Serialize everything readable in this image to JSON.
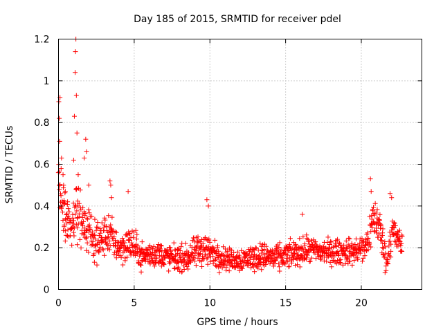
{
  "chart_data": {
    "type": "scatter",
    "title": "Day 185 of 2015, SRMTID for receiver pdel",
    "xlabel": "GPS time / hours",
    "ylabel": "SRMTID / TECUs",
    "xlim": [
      0,
      24
    ],
    "ylim": [
      0,
      1.2
    ],
    "grid": true,
    "marker": "plus",
    "series_color": "#ff0000",
    "xticks": [
      0,
      5,
      10,
      15,
      20
    ],
    "xtick_labels": [
      "0",
      "5",
      "10",
      "15",
      "20"
    ],
    "yticks": [
      0,
      0.2,
      0.4,
      0.6,
      0.8,
      1.0,
      1.2
    ],
    "ytick_labels": [
      "0",
      "0.2",
      "0.4",
      "0.6",
      "0.8",
      "1",
      "1.2"
    ],
    "trend": [
      [
        0.0,
        0.55,
        0.14
      ],
      [
        0.15,
        0.45,
        0.12
      ],
      [
        0.4,
        0.35,
        0.1
      ],
      [
        0.8,
        0.3,
        0.09
      ],
      [
        1.2,
        0.38,
        0.12
      ],
      [
        1.8,
        0.3,
        0.09
      ],
      [
        2.5,
        0.22,
        0.07
      ],
      [
        3.3,
        0.27,
        0.08
      ],
      [
        4.0,
        0.2,
        0.06
      ],
      [
        4.8,
        0.22,
        0.07
      ],
      [
        5.5,
        0.16,
        0.05
      ],
      [
        6.5,
        0.17,
        0.05
      ],
      [
        7.5,
        0.15,
        0.05
      ],
      [
        8.5,
        0.15,
        0.05
      ],
      [
        9.5,
        0.2,
        0.07
      ],
      [
        10.5,
        0.16,
        0.05
      ],
      [
        11.5,
        0.14,
        0.04
      ],
      [
        12.5,
        0.15,
        0.05
      ],
      [
        13.5,
        0.16,
        0.05
      ],
      [
        14.5,
        0.15,
        0.05
      ],
      [
        15.5,
        0.17,
        0.05
      ],
      [
        16.5,
        0.19,
        0.05
      ],
      [
        17.5,
        0.18,
        0.05
      ],
      [
        18.5,
        0.18,
        0.05
      ],
      [
        19.5,
        0.18,
        0.05
      ],
      [
        20.3,
        0.2,
        0.06
      ],
      [
        20.8,
        0.35,
        0.08
      ],
      [
        21.2,
        0.3,
        0.08
      ],
      [
        21.7,
        0.12,
        0.05
      ],
      [
        22.0,
        0.3,
        0.08
      ],
      [
        22.3,
        0.25,
        0.06
      ],
      [
        22.6,
        0.22,
        0.05
      ]
    ],
    "highlights": [
      [
        0.02,
        0.9
      ],
      [
        0.05,
        0.82
      ],
      [
        0.08,
        0.71
      ],
      [
        0.1,
        0.92
      ],
      [
        0.2,
        0.63
      ],
      [
        0.3,
        0.55
      ],
      [
        0.45,
        0.47
      ],
      [
        0.6,
        0.42
      ],
      [
        1.0,
        0.62
      ],
      [
        1.05,
        0.83
      ],
      [
        1.1,
        1.04
      ],
      [
        1.12,
        1.14
      ],
      [
        1.15,
        1.2
      ],
      [
        1.18,
        0.93
      ],
      [
        1.22,
        0.75
      ],
      [
        1.3,
        0.55
      ],
      [
        1.7,
        0.63
      ],
      [
        1.8,
        0.72
      ],
      [
        1.85,
        0.66
      ],
      [
        2.0,
        0.5
      ],
      [
        3.4,
        0.52
      ],
      [
        3.45,
        0.5
      ],
      [
        3.5,
        0.44
      ],
      [
        4.6,
        0.47
      ],
      [
        9.8,
        0.43
      ],
      [
        9.9,
        0.4
      ],
      [
        16.1,
        0.36
      ],
      [
        20.6,
        0.53
      ],
      [
        20.65,
        0.47
      ],
      [
        21.9,
        0.46
      ],
      [
        22.0,
        0.44
      ],
      [
        0.4,
        0.41
      ]
    ],
    "x_range_hours": [
      0,
      22.7
    ],
    "sample_interval_hours": 0.017
  }
}
